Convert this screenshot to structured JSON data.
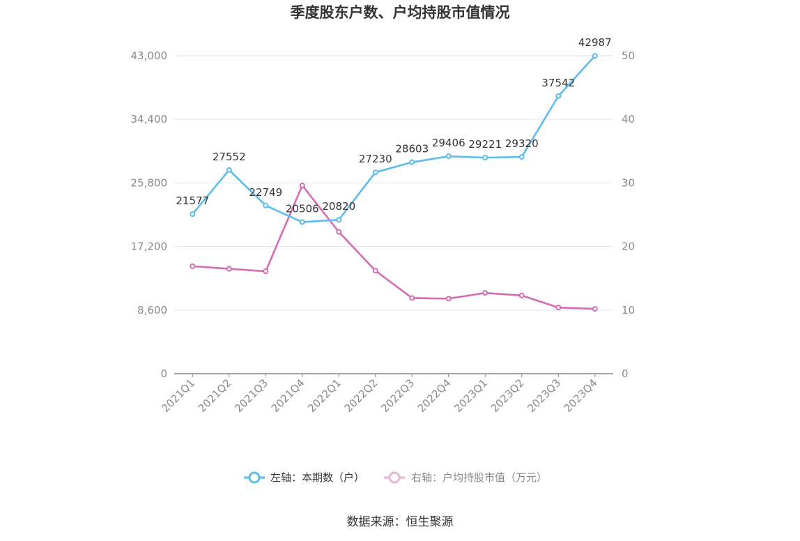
{
  "chart_data": {
    "type": "line",
    "title": "季度股东户数、户均持股市值情况",
    "categories": [
      "2021Q1",
      "2021Q2",
      "2021Q3",
      "2021Q4",
      "2022Q1",
      "2022Q2",
      "2022Q3",
      "2022Q4",
      "2023Q1",
      "2023Q2",
      "2023Q3",
      "2023Q4"
    ],
    "left_axis": {
      "ticks": [
        "0",
        "8,600",
        "17,200",
        "25,800",
        "34,400",
        "43,000"
      ],
      "ylim": [
        0,
        43000
      ]
    },
    "right_axis": {
      "ticks": [
        "0",
        "10",
        "20",
        "30",
        "40",
        "50"
      ],
      "ylim": [
        0,
        50
      ]
    },
    "series": [
      {
        "name": "左轴：本期数（户）",
        "axis": "left",
        "color": "#5bbcee",
        "values": [
          21577,
          27552,
          22749,
          20506,
          20820,
          27230,
          28603,
          29406,
          29221,
          29320,
          37542,
          42987
        ],
        "labels": [
          "21577",
          "27552",
          "22749",
          "20506",
          "20820",
          "27230",
          "28603",
          "29406",
          "29221",
          "29320",
          "37542",
          "42987"
        ]
      },
      {
        "name": "右轴：户均持股市值（万元）",
        "axis": "right",
        "color": "#d56bb2",
        "values": [
          16.9,
          16.5,
          16.1,
          29.6,
          22.3,
          16.2,
          11.9,
          11.8,
          12.7,
          12.3,
          10.4,
          10.2
        ]
      }
    ],
    "grid": true,
    "legend_position": "bottom"
  },
  "source": "数据来源：恒生聚源"
}
